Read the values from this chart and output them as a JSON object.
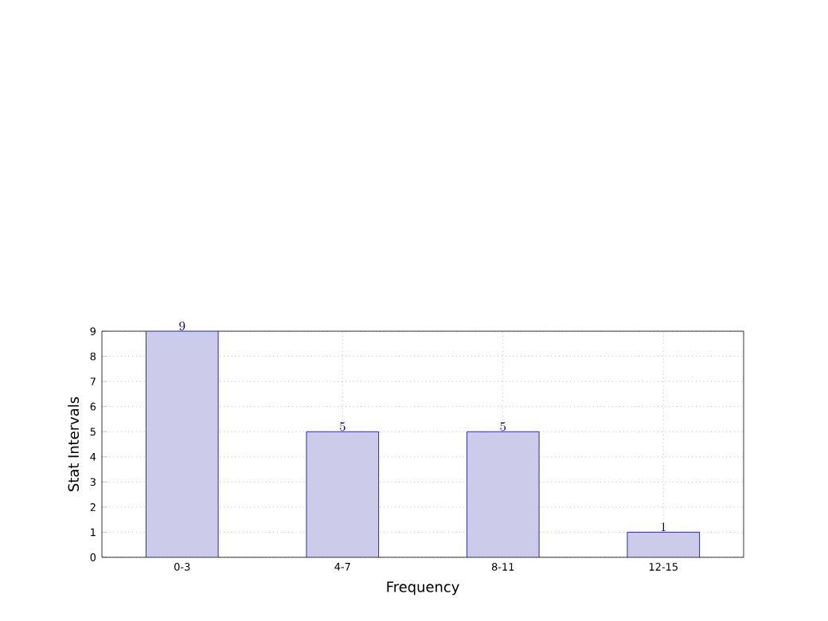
{
  "chart_data": {
    "type": "bar",
    "xlabel": "Frequency",
    "ylabel": "Stat Intervals",
    "categories": [
      "0-3",
      "4-7",
      "8-11",
      "12-15"
    ],
    "values": [
      9,
      5,
      5,
      1
    ],
    "color": "#ccccea",
    "ylim": [
      0,
      9
    ],
    "yticks": [
      0,
      1,
      2,
      3,
      4,
      5,
      6,
      7,
      8,
      9
    ],
    "grid": true,
    "data_labels": true
  }
}
